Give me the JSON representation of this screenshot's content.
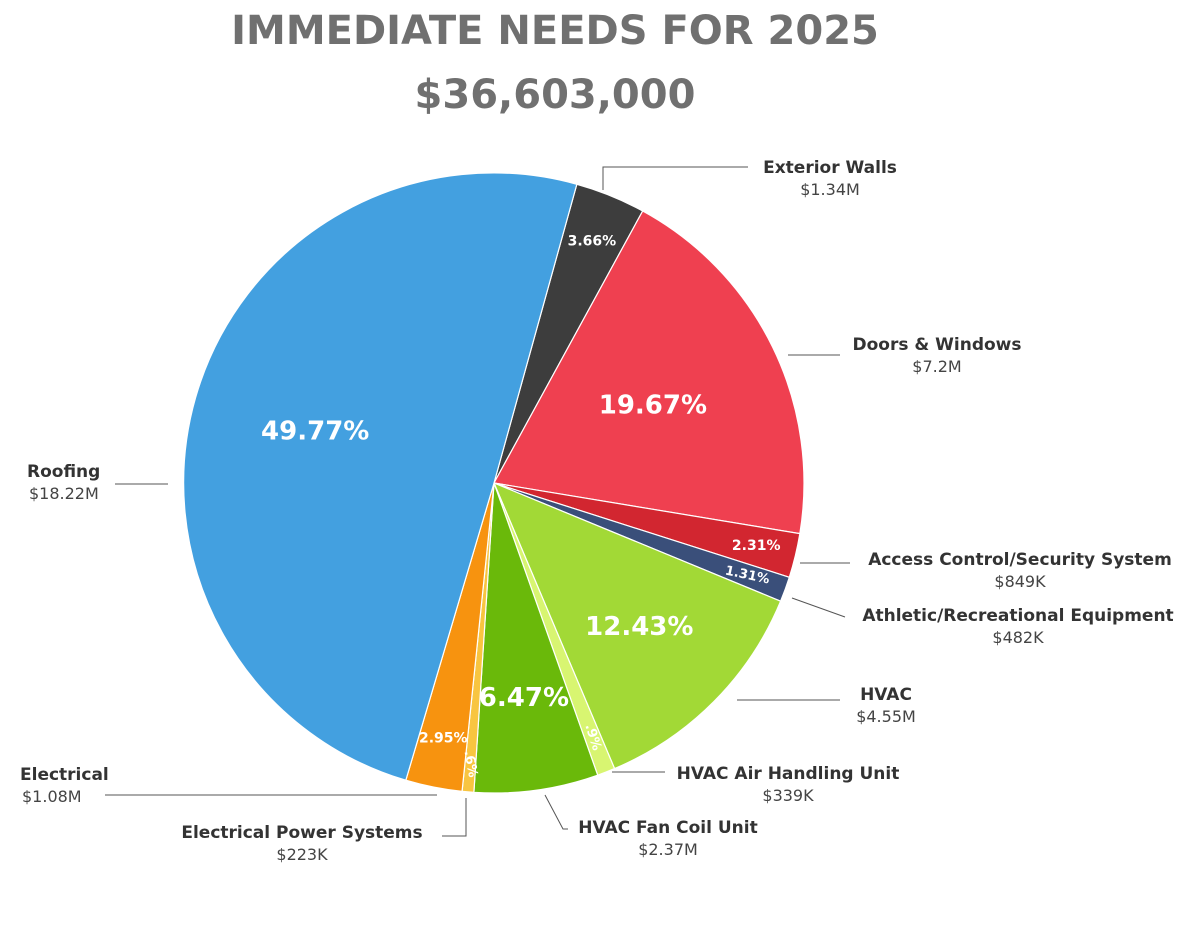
{
  "header": {
    "title": "IMMEDIATE NEEDS FOR 2025",
    "total": "$36,603,000"
  },
  "chart_data": {
    "type": "pie",
    "title": "IMMEDIATE NEEDS FOR 2025",
    "subtitle": "$36,603,000",
    "slices": [
      {
        "name": "Exterior Walls",
        "value_label": "$1.34M",
        "pct": 3.66,
        "pct_label": "3.66%",
        "color": "#3d3d3d"
      },
      {
        "name": "Doors & Windows",
        "value_label": "$7.2M",
        "pct": 19.67,
        "pct_label": "19.67%",
        "color": "#ef4050"
      },
      {
        "name": "Access Control/Security System",
        "value_label": "$849K",
        "pct": 2.31,
        "pct_label": "2.31%",
        "color": "#d22630"
      },
      {
        "name": "Athletic/Recreational Equipment",
        "value_label": "$482K",
        "pct": 1.31,
        "pct_label": "1.31%",
        "color": "#3a4f7a"
      },
      {
        "name": "HVAC",
        "value_label": "$4.55M",
        "pct": 12.43,
        "pct_label": "12.43%",
        "color": "#a2d936"
      },
      {
        "name": "HVAC Air Handling Unit",
        "value_label": "$339K",
        "pct": 0.93,
        "pct_label": ".9%",
        "color": "#d8f571"
      },
      {
        "name": "HVAC Fan Coil Unit",
        "value_label": "$2.37M",
        "pct": 6.47,
        "pct_label": "6.47%",
        "color": "#6ab90a"
      },
      {
        "name": "Electrical Power Systems",
        "value_label": "$223K",
        "pct": 0.61,
        "pct_label": ".6%",
        "color": "#f8c540"
      },
      {
        "name": "Electrical",
        "value_label": "$1.08M",
        "pct": 2.95,
        "pct_label": "2.95%",
        "color": "#f7930f"
      },
      {
        "name": "Roofing",
        "value_label": "$18.22M",
        "pct": 49.77,
        "pct_label": "49.77%",
        "color": "#43a0e0"
      }
    ]
  }
}
